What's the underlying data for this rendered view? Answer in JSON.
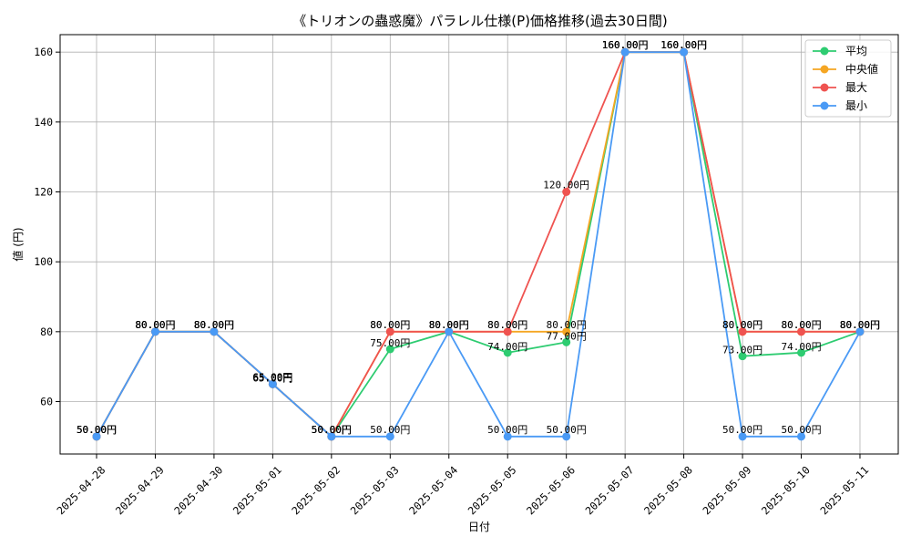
{
  "chart_data": {
    "type": "line",
    "title": "《トリオンの蟲惑魔》パラレル仕様(P)価格推移(過去30日間)",
    "xlabel": "日付",
    "ylabel": "値 (円)",
    "categories": [
      "2025-04-28",
      "2025-04-29",
      "2025-04-30",
      "2025-05-01",
      "2025-05-02",
      "2025-05-03",
      "2025-05-04",
      "2025-05-05",
      "2025-05-06",
      "2025-05-07",
      "2025-05-08",
      "2025-05-09",
      "2025-05-10",
      "2025-05-11"
    ],
    "ylim": [
      45,
      165
    ],
    "yticks": [
      60,
      80,
      100,
      120,
      140,
      160
    ],
    "grid": true,
    "legend_position": "top-right",
    "series": [
      {
        "name": "平均",
        "color": "#2ecc71",
        "values": [
          50,
          80,
          80,
          65,
          50,
          75,
          80,
          74,
          77,
          160,
          160,
          73,
          74,
          80
        ]
      },
      {
        "name": "中央値",
        "color": "#f5a623",
        "values": [
          50,
          80,
          80,
          65,
          50,
          80,
          80,
          80,
          80,
          160,
          160,
          80,
          80,
          80
        ]
      },
      {
        "name": "最大",
        "color": "#ef5350",
        "values": [
          50,
          80,
          80,
          65,
          50,
          80,
          80,
          80,
          120,
          160,
          160,
          80,
          80,
          80
        ]
      },
      {
        "name": "最小",
        "color": "#4a9af5",
        "values": [
          50,
          80,
          80,
          65,
          50,
          50,
          80,
          50,
          50,
          160,
          160,
          50,
          50,
          80
        ]
      }
    ],
    "data_labels": [
      {
        "series": 0,
        "labels": [
          "50.00円",
          "80.00円",
          "80.00円",
          "65.00円",
          "50.00円",
          "75.00円",
          "80.00円",
          "74.00円",
          "77.00円",
          "160.00円",
          "160.00円",
          "73.00円",
          "74.00円",
          "80.00円"
        ]
      },
      {
        "series": 1,
        "labels": [
          "50.00円",
          "80.00円",
          "80.00円",
          "65.00円",
          "50.00円",
          "80.00円",
          "80.00円",
          "80.00円",
          "80.00円",
          "160.00円",
          "160.00円",
          "80.00円",
          "80.00円",
          "80.00円"
        ]
      },
      {
        "series": 2,
        "labels": [
          "50.00円",
          "80.00円",
          "80.00円",
          "65.00円",
          "50.00円",
          "80.00円",
          "80.00円",
          "80.00円",
          "120.00円",
          "160.00円",
          "160.00円",
          "80.00円",
          "80.00円",
          "80.00円"
        ]
      },
      {
        "series": 3,
        "labels": [
          "50.00円",
          "80.00円",
          "80.00円",
          "65.00円",
          "50.00円",
          "50.00円",
          "80.00円",
          "50.00円",
          "50.00円",
          "160.00円",
          "160.00円",
          "50.00円",
          "50.00円",
          "80.00円"
        ]
      }
    ]
  }
}
